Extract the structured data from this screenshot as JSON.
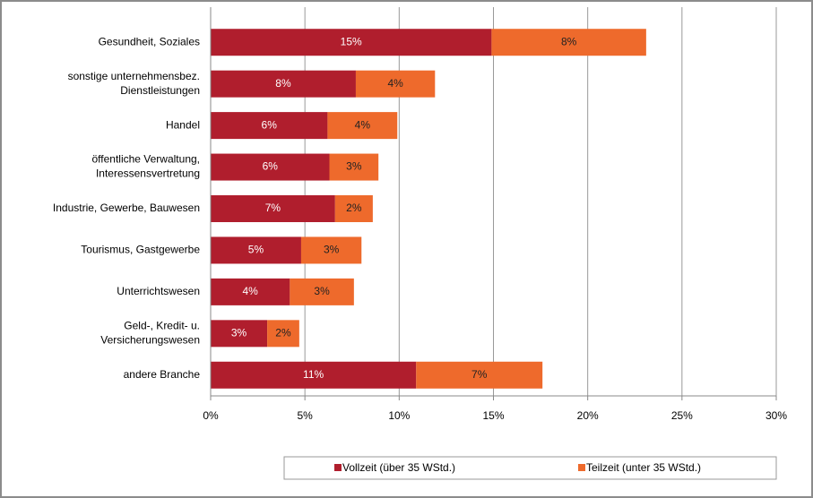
{
  "chart_data": {
    "type": "stacked_barh",
    "categories": [
      "Gesundheit, Soziales",
      [
        "sonstige unternehmensbez.",
        "Dienstleistungen"
      ],
      "Handel",
      [
        "öffentliche Verwaltung,",
        "Interessensvertretung"
      ],
      "Industrie, Gewerbe, Bauwesen",
      "Tourismus, Gastgewerbe",
      "Unterrichtswesen",
      [
        "Geld-, Kredit- u.",
        "Versicherungswesen"
      ],
      "andere Branche"
    ],
    "series": [
      {
        "name": "Vollzeit (über 35 WStd.)",
        "color": "#b01e2d",
        "values": [
          14.9,
          7.7,
          6.2,
          6.3,
          6.6,
          4.8,
          4.2,
          3.0,
          10.9
        ],
        "value_labels": [
          "15%",
          "8%",
          "6%",
          "6%",
          "7%",
          "5%",
          "4%",
          "3%",
          "11%"
        ]
      },
      {
        "name": "Teilzeit (unter 35 WStd.)",
        "color": "#ee6a2c",
        "values": [
          8.2,
          4.2,
          3.7,
          2.6,
          2.0,
          3.2,
          3.4,
          1.7,
          6.7
        ],
        "value_labels": [
          "8%",
          "4%",
          "4%",
          "3%",
          "2%",
          "3%",
          "3%",
          "2%",
          "7%"
        ]
      }
    ],
    "xlim": [
      0,
      30
    ],
    "xticks": [
      {
        "value": 0,
        "label": "0%"
      },
      {
        "value": 5,
        "label": "5%"
      },
      {
        "value": 10,
        "label": "10%"
      },
      {
        "value": 15,
        "label": "15%"
      },
      {
        "value": 20,
        "label": "20%"
      },
      {
        "value": 25,
        "label": "25%"
      },
      {
        "value": 30,
        "label": "30%"
      }
    ],
    "grid": true,
    "legend": "bottom"
  }
}
